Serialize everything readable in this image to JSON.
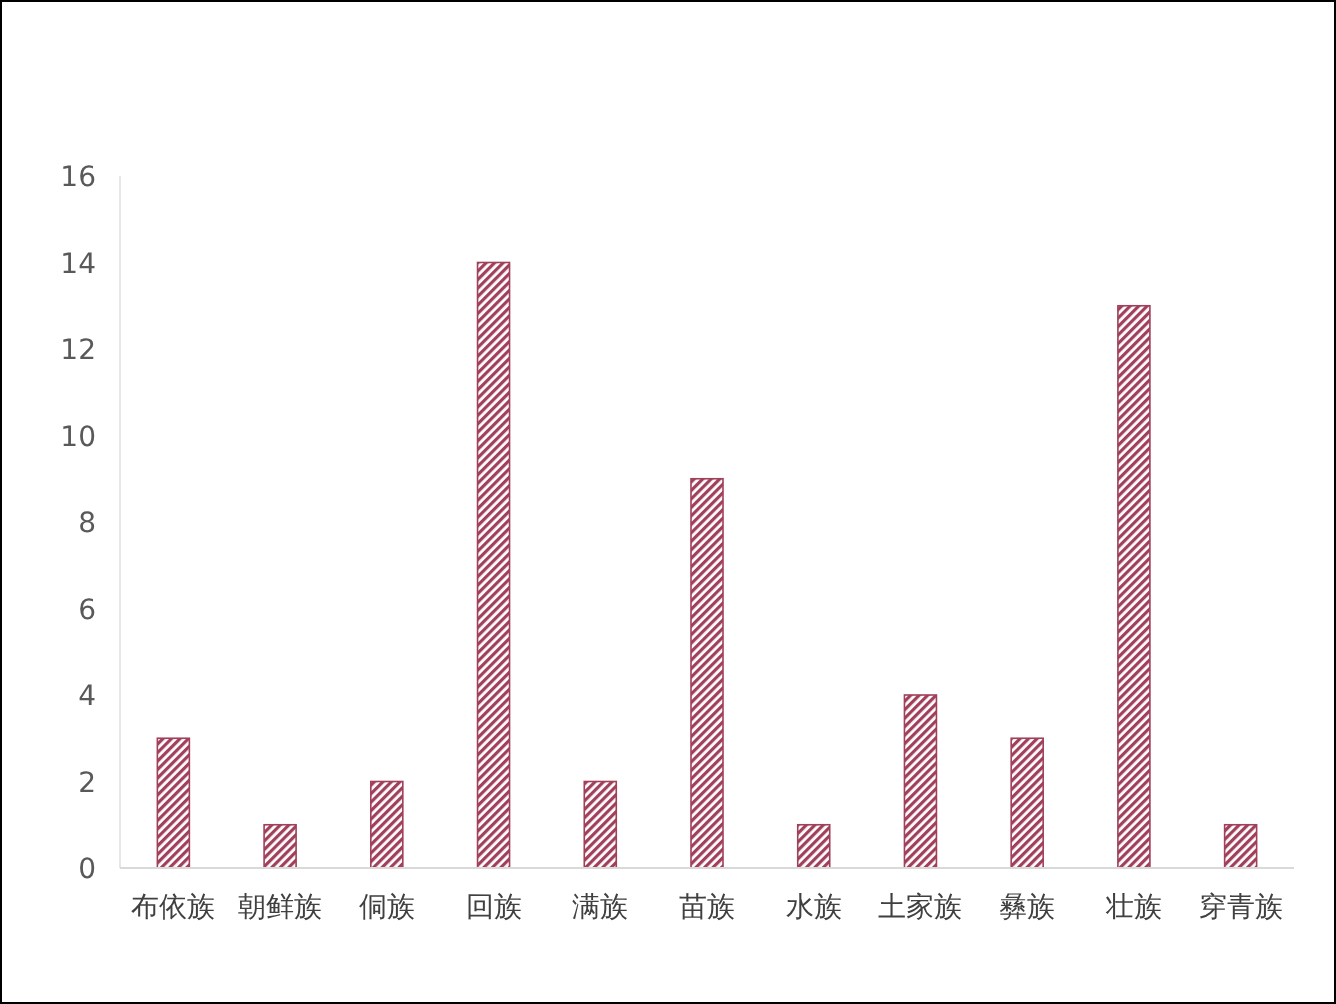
{
  "chart_data": {
    "type": "bar",
    "categories": [
      "布依族",
      "朝鲜族",
      "侗族",
      "回族",
      "满族",
      "苗族",
      "水族",
      "土家族",
      "彝族",
      "壮族",
      "穿青族"
    ],
    "values": [
      3,
      1,
      2,
      14,
      2,
      9,
      1,
      4,
      3,
      13,
      1
    ],
    "color": "#a0405a",
    "ylim": [
      0,
      16
    ],
    "yticks": [
      0,
      2,
      4,
      6,
      8,
      10,
      12,
      14,
      16
    ],
    "grid": false
  }
}
